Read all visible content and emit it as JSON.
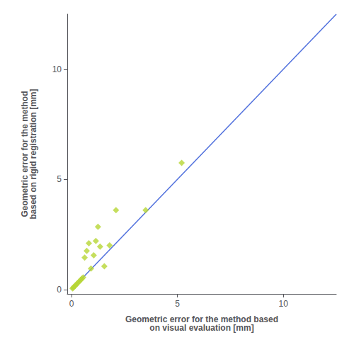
{
  "chart_data": {
    "type": "scatter",
    "xlabel": "Geometric error for the method based\non visual evaluation [mm]",
    "ylabel": "Geometric error for the method\nbased on rigid registration [mm]",
    "series": [
      {
        "type": "line",
        "x": [
          0,
          12.5
        ],
        "values": [
          0,
          12.5
        ]
      },
      {
        "type": "scatter",
        "marker": "diamond",
        "x": [
          0.05,
          0.08,
          0.12,
          0.18,
          0.22,
          0.28,
          0.35,
          0.42,
          0.48,
          0.55,
          0.62,
          0.72,
          0.82,
          0.92,
          1.05,
          1.15,
          1.25,
          1.35,
          1.55,
          1.8,
          2.1,
          3.5,
          5.2
        ],
        "values": [
          0.05,
          0.08,
          0.12,
          0.18,
          0.22,
          0.28,
          0.35,
          0.42,
          0.48,
          0.55,
          1.45,
          1.75,
          2.1,
          0.95,
          1.55,
          2.2,
          2.85,
          1.95,
          1.05,
          2.0,
          3.6,
          3.6,
          5.75
        ]
      }
    ],
    "xlim": [
      -0.2,
      12.5
    ],
    "ylim": [
      -0.2,
      12.5
    ],
    "xticks": [
      0,
      5,
      10
    ],
    "yticks": [
      0,
      5,
      10
    ],
    "grid": false
  }
}
